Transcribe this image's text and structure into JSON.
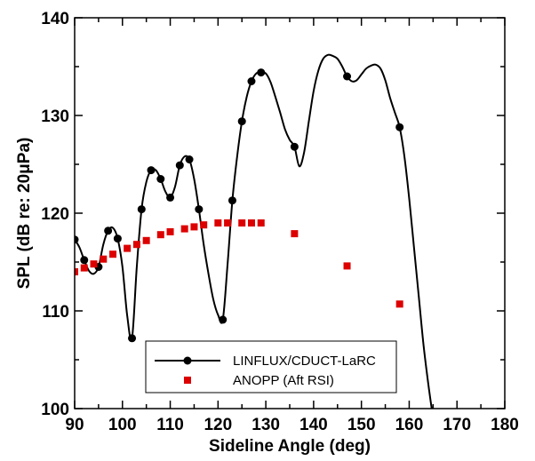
{
  "chart_data": {
    "type": "line",
    "xlabel": "Sideline Angle (deg)",
    "ylabel": "SPL (dB re: 20μPa)",
    "xlim": [
      90,
      180
    ],
    "ylim": [
      100,
      140
    ],
    "x_ticks": [
      90,
      100,
      110,
      120,
      130,
      140,
      150,
      160,
      170,
      180
    ],
    "y_ticks": [
      100,
      110,
      120,
      130,
      140
    ],
    "grid": false,
    "legend_position": "bottom-center",
    "series": [
      {
        "name": "LINFLUX/CDUCT-LaRC",
        "style": "line-with-circle-markers",
        "color": "#000000",
        "markers": [
          [
            90,
            117.3
          ],
          [
            92,
            115.2
          ],
          [
            95,
            114.5
          ],
          [
            97,
            118.2
          ],
          [
            99,
            117.4
          ],
          [
            102,
            107.2
          ],
          [
            104,
            120.4
          ],
          [
            106,
            124.4
          ],
          [
            108,
            123.5
          ],
          [
            110,
            121.6
          ],
          [
            112,
            124.9
          ],
          [
            114,
            125.5
          ],
          [
            116,
            120.4
          ],
          [
            121,
            109.1
          ],
          [
            123,
            121.3
          ],
          [
            125,
            129.4
          ],
          [
            127,
            133.5
          ],
          [
            129,
            134.4
          ],
          [
            136,
            126.8
          ],
          [
            147,
            134.0
          ],
          [
            158,
            128.8
          ]
        ],
        "curve": [
          [
            90,
            117.3
          ],
          [
            91,
            116.5
          ],
          [
            92,
            115.2
          ],
          [
            93,
            114.1
          ],
          [
            94,
            113.8
          ],
          [
            95,
            114.5
          ],
          [
            96,
            116.8
          ],
          [
            97,
            118.2
          ],
          [
            98,
            118.5
          ],
          [
            99,
            117.4
          ],
          [
            100,
            114.5
          ],
          [
            101,
            109.5
          ],
          [
            102,
            107.2
          ],
          [
            103,
            114.5
          ],
          [
            104,
            120.4
          ],
          [
            105,
            123.2
          ],
          [
            106,
            124.4
          ],
          [
            107,
            124.4
          ],
          [
            108,
            123.5
          ],
          [
            109,
            122.2
          ],
          [
            110,
            121.6
          ],
          [
            111,
            122.7
          ],
          [
            112,
            124.9
          ],
          [
            113,
            125.8
          ],
          [
            114,
            125.5
          ],
          [
            115,
            123.5
          ],
          [
            116,
            120.4
          ],
          [
            117,
            116.8
          ],
          [
            118,
            113.8
          ],
          [
            119,
            111.2
          ],
          [
            120,
            109.6
          ],
          [
            121,
            109.1
          ],
          [
            122,
            114.8
          ],
          [
            123,
            121.3
          ],
          [
            124,
            125.8
          ],
          [
            125,
            129.4
          ],
          [
            126,
            131.9
          ],
          [
            127,
            133.5
          ],
          [
            128,
            134.3
          ],
          [
            129,
            134.4
          ],
          [
            130,
            134.3
          ],
          [
            131,
            133.4
          ],
          [
            132,
            131.9
          ],
          [
            133,
            130.3
          ],
          [
            134,
            128.6
          ],
          [
            135,
            127.5
          ],
          [
            136,
            126.8
          ],
          [
            137,
            124.8
          ],
          [
            138,
            126.2
          ],
          [
            139,
            129.4
          ],
          [
            140,
            132.5
          ],
          [
            141,
            134.6
          ],
          [
            142,
            135.8
          ],
          [
            143,
            136.2
          ],
          [
            144,
            136.1
          ],
          [
            145,
            135.8
          ],
          [
            146,
            135.0
          ],
          [
            147,
            134.0
          ],
          [
            148,
            133.5
          ],
          [
            149,
            133.6
          ],
          [
            150,
            134.2
          ],
          [
            151,
            134.8
          ],
          [
            152,
            135.1
          ],
          [
            153,
            135.2
          ],
          [
            154,
            134.8
          ],
          [
            155,
            133.6
          ],
          [
            156,
            131.8
          ],
          [
            157,
            130.3
          ],
          [
            158,
            128.8
          ],
          [
            159,
            125.8
          ],
          [
            160,
            121.5
          ],
          [
            161,
            116.5
          ],
          [
            162,
            111.5
          ],
          [
            163,
            106.5
          ],
          [
            164,
            102.5
          ],
          [
            165,
            99.0
          ]
        ]
      },
      {
        "name": "ANOPP (Aft RSI)",
        "style": "square-markers",
        "color": "#dd0000",
        "points": [
          [
            90,
            114.0
          ],
          [
            92,
            114.4
          ],
          [
            94,
            114.8
          ],
          [
            96,
            115.3
          ],
          [
            98,
            115.8
          ],
          [
            101,
            116.4
          ],
          [
            103,
            116.8
          ],
          [
            105,
            117.2
          ],
          [
            108,
            117.8
          ],
          [
            110,
            118.1
          ],
          [
            113,
            118.4
          ],
          [
            115,
            118.6
          ],
          [
            117,
            118.8
          ],
          [
            120,
            119.0
          ],
          [
            122,
            119.0
          ],
          [
            125,
            119.0
          ],
          [
            127,
            119.0
          ],
          [
            129,
            119.0
          ],
          [
            136,
            117.9
          ],
          [
            147,
            114.6
          ],
          [
            158,
            110.7
          ]
        ]
      }
    ]
  }
}
